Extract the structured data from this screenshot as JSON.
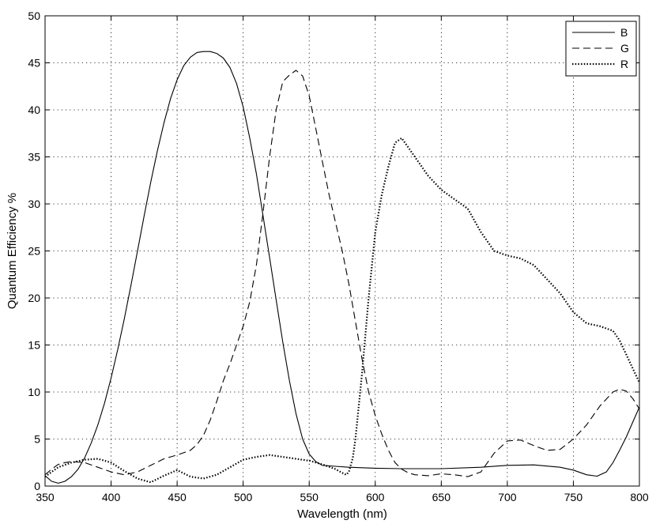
{
  "chart_data": {
    "type": "line",
    "title": "",
    "xlabel": "Wavelength  (nm)",
    "ylabel": "Quantum Efficiency  %",
    "xlim": [
      350,
      800
    ],
    "ylim": [
      0,
      50
    ],
    "xticks": [
      350,
      400,
      450,
      500,
      550,
      600,
      650,
      700,
      750,
      800
    ],
    "yticks": [
      0,
      5,
      10,
      15,
      20,
      25,
      30,
      35,
      40,
      45,
      50
    ],
    "grid": true,
    "legend_position": "top-right",
    "series": [
      {
        "name": "B",
        "style": "solid",
        "color": "#000000",
        "x": [
          350,
          355,
          360,
          365,
          370,
          375,
          380,
          385,
          390,
          395,
          400,
          405,
          410,
          415,
          420,
          425,
          430,
          435,
          440,
          445,
          450,
          455,
          460,
          465,
          470,
          475,
          480,
          485,
          490,
          495,
          500,
          505,
          510,
          515,
          520,
          525,
          530,
          535,
          540,
          545,
          550,
          555,
          560,
          570,
          580,
          600,
          620,
          650,
          680,
          700,
          720,
          740,
          750,
          760,
          768,
          775,
          780,
          785,
          790,
          795,
          800
        ],
        "y": [
          1.1,
          0.5,
          0.3,
          0.5,
          1.0,
          1.8,
          3.0,
          4.6,
          6.5,
          8.8,
          11.5,
          14.5,
          17.8,
          21.3,
          25.0,
          28.7,
          32.3,
          35.6,
          38.6,
          41.2,
          43.2,
          44.7,
          45.6,
          46.1,
          46.2,
          46.2,
          46.0,
          45.5,
          44.5,
          42.8,
          40.3,
          37.0,
          33.2,
          28.8,
          24.3,
          19.8,
          15.3,
          11.2,
          7.7,
          5.0,
          3.4,
          2.6,
          2.2,
          2.1,
          2.0,
          1.9,
          1.85,
          1.85,
          2.0,
          2.2,
          2.25,
          2.0,
          1.7,
          1.2,
          1.05,
          1.5,
          2.5,
          3.8,
          5.2,
          6.8,
          8.4
        ]
      },
      {
        "name": "G",
        "style": "dashed",
        "color": "#000000",
        "x": [
          350,
          355,
          360,
          365,
          370,
          380,
          390,
          400,
          410,
          420,
          430,
          440,
          450,
          460,
          465,
          470,
          475,
          480,
          485,
          490,
          495,
          500,
          505,
          510,
          515,
          520,
          525,
          530,
          535,
          540,
          545,
          550,
          555,
          560,
          565,
          570,
          575,
          580,
          585,
          590,
          595,
          600,
          605,
          610,
          615,
          620,
          625,
          630,
          640,
          650,
          660,
          670,
          680,
          685,
          690,
          700,
          710,
          720,
          730,
          740,
          750,
          760,
          770,
          780,
          785,
          790,
          795,
          800
        ],
        "y": [
          1.2,
          1.8,
          2.3,
          2.5,
          2.6,
          2.5,
          2.0,
          1.5,
          1.2,
          1.5,
          2.2,
          2.9,
          3.3,
          3.8,
          4.4,
          5.4,
          7.0,
          9.0,
          11.2,
          13.0,
          15.0,
          17.0,
          19.6,
          23.5,
          29.0,
          35.0,
          40.0,
          43.0,
          43.7,
          44.2,
          43.6,
          41.5,
          38.0,
          34.5,
          31.0,
          28.0,
          25.0,
          21.5,
          17.5,
          13.5,
          10.0,
          7.5,
          5.5,
          3.8,
          2.5,
          1.8,
          1.4,
          1.2,
          1.1,
          1.3,
          1.2,
          1.0,
          1.5,
          2.5,
          3.5,
          4.8,
          4.9,
          4.3,
          3.8,
          3.9,
          5.0,
          6.5,
          8.5,
          10.0,
          10.3,
          10.1,
          9.3,
          8.2
        ]
      },
      {
        "name": "R",
        "style": "dotted",
        "color": "#000000",
        "x": [
          350,
          360,
          370,
          380,
          390,
          400,
          410,
          420,
          430,
          440,
          450,
          460,
          470,
          480,
          490,
          500,
          510,
          520,
          530,
          540,
          550,
          560,
          570,
          575,
          578,
          580,
          583,
          585,
          590,
          595,
          600,
          605,
          610,
          615,
          620,
          625,
          630,
          640,
          650,
          660,
          670,
          680,
          690,
          700,
          710,
          720,
          730,
          740,
          750,
          760,
          770,
          780,
          785,
          790,
          795,
          800
        ],
        "y": [
          1.0,
          2.0,
          2.5,
          2.8,
          2.9,
          2.5,
          1.6,
          0.8,
          0.4,
          1.1,
          1.7,
          1.0,
          0.8,
          1.2,
          2.0,
          2.8,
          3.1,
          3.3,
          3.1,
          2.9,
          2.7,
          2.3,
          1.8,
          1.4,
          1.2,
          1.5,
          3.0,
          5.0,
          12.0,
          20.0,
          27.0,
          31.0,
          34.0,
          36.5,
          37.0,
          36.0,
          35.0,
          33.0,
          31.5,
          30.5,
          29.5,
          27.0,
          25.0,
          24.5,
          24.2,
          23.5,
          22.0,
          20.5,
          18.5,
          17.3,
          17.0,
          16.5,
          15.5,
          14.0,
          12.5,
          11.0
        ]
      }
    ]
  }
}
